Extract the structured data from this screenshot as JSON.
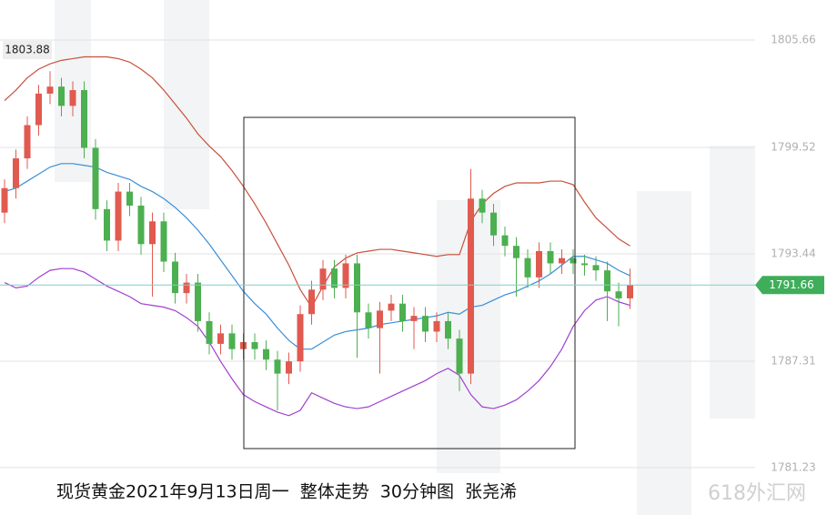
{
  "chart_data": {
    "type": "candlestick",
    "caption": "现货黄金2021年9月13日周一  整体走势  30分钟图  张尧浠",
    "watermark": "618外汇网",
    "high_label": 1803.88,
    "last_price": 1791.66,
    "ylim": [
      1778.52,
      1807.95
    ],
    "yticks": [
      1781.23,
      1787.31,
      1793.44,
      1799.52,
      1805.66
    ],
    "up_color": "#e05a50",
    "down_color": "#4caf50",
    "open": [
      1795.8,
      1797.2,
      1798.9,
      1800.8,
      1802.6,
      1803.0,
      1801.9,
      1802.8,
      1799.5,
      1796.0,
      1794.2,
      1797.0,
      1796.2,
      1794.0,
      1795.3,
      1793.0,
      1791.2,
      1791.8,
      1789.6,
      1788.3,
      1788.9,
      1788.0,
      1788.4,
      1788.0,
      1787.4,
      1786.6,
      1787.3,
      1790.0,
      1791.4,
      1792.6,
      1791.5,
      1792.9,
      1790.1,
      1789.2,
      1790.2,
      1790.6,
      1789.6,
      1789.9,
      1789.0,
      1789.6,
      1788.6,
      1786.6,
      1796.6,
      1795.8,
      1794.5,
      1793.9,
      1793.2,
      1792.1,
      1793.6,
      1792.9,
      1793.2,
      1792.9,
      1792.8,
      1792.5,
      1791.3,
      1790.9
    ],
    "high": [
      1797.7,
      1799.4,
      1801.3,
      1803.1,
      1803.88,
      1803.5,
      1803.3,
      1803.3,
      1800.0,
      1796.5,
      1797.5,
      1797.5,
      1796.7,
      1795.8,
      1795.8,
      1793.5,
      1792.3,
      1792.3,
      1790.1,
      1789.4,
      1789.4,
      1788.9,
      1788.9,
      1788.5,
      1787.9,
      1787.8,
      1790.5,
      1791.9,
      1793.1,
      1793.1,
      1793.4,
      1793.4,
      1790.6,
      1790.7,
      1791.1,
      1791.1,
      1790.4,
      1790.4,
      1790.1,
      1790.1,
      1789.1,
      1798.3,
      1797.1,
      1796.3,
      1795.0,
      1794.4,
      1793.7,
      1794.1,
      1794.1,
      1793.7,
      1793.7,
      1793.4,
      1793.3,
      1793.0,
      1791.8,
      1792.6
    ],
    "low": [
      1795.2,
      1796.6,
      1798.3,
      1800.2,
      1802.0,
      1801.3,
      1801.3,
      1798.9,
      1795.4,
      1793.6,
      1793.6,
      1795.6,
      1793.4,
      1791.0,
      1792.4,
      1790.6,
      1790.6,
      1789.0,
      1787.7,
      1787.7,
      1787.4,
      1787.4,
      1787.4,
      1786.8,
      1784.5,
      1786.0,
      1786.7,
      1789.4,
      1790.8,
      1790.9,
      1790.9,
      1787.5,
      1788.6,
      1786.6,
      1789.6,
      1789.0,
      1788.0,
      1788.4,
      1788.4,
      1788.0,
      1785.6,
      1786.0,
      1795.2,
      1793.9,
      1793.3,
      1791.0,
      1791.5,
      1791.5,
      1792.3,
      1792.3,
      1792.3,
      1792.2,
      1791.9,
      1789.6,
      1789.3,
      1790.3
    ],
    "close": [
      1797.2,
      1798.9,
      1800.8,
      1802.6,
      1803.0,
      1801.9,
      1802.8,
      1799.5,
      1796.0,
      1794.2,
      1797.0,
      1796.2,
      1794.0,
      1795.3,
      1793.0,
      1791.2,
      1791.8,
      1789.6,
      1788.3,
      1788.9,
      1788.0,
      1788.4,
      1788.0,
      1787.4,
      1786.6,
      1787.3,
      1790.0,
      1791.4,
      1792.6,
      1791.5,
      1792.9,
      1790.1,
      1789.2,
      1790.2,
      1790.6,
      1789.6,
      1789.9,
      1789.0,
      1789.6,
      1788.6,
      1786.6,
      1796.6,
      1795.8,
      1794.5,
      1793.9,
      1793.2,
      1792.1,
      1793.6,
      1792.9,
      1793.2,
      1792.9,
      1792.8,
      1792.5,
      1791.3,
      1790.9,
      1791.66
    ],
    "series": [
      {
        "color": "#c8503c",
        "values": [
          1802.2,
          1802.8,
          1803.5,
          1804.0,
          1804.3,
          1804.5,
          1804.6,
          1804.7,
          1804.7,
          1804.7,
          1804.6,
          1804.4,
          1804.0,
          1803.5,
          1802.8,
          1802.0,
          1801.2,
          1800.3,
          1799.6,
          1799.0,
          1798.2,
          1797.3,
          1796.3,
          1795.2,
          1794.0,
          1792.8,
          1791.4,
          1790.4,
          1791.6,
          1792.7,
          1793.2,
          1793.5,
          1793.6,
          1793.7,
          1793.7,
          1793.6,
          1793.5,
          1793.4,
          1793.3,
          1793.4,
          1793.4,
          1795.3,
          1796.3,
          1796.9,
          1797.3,
          1797.5,
          1797.5,
          1797.5,
          1797.6,
          1797.6,
          1797.4,
          1796.4,
          1795.5,
          1794.9,
          1794.3,
          1793.9
        ]
      },
      {
        "color": "#3a8fd8",
        "values": [
          1797.0,
          1797.2,
          1797.6,
          1798.0,
          1798.4,
          1798.6,
          1798.6,
          1798.5,
          1798.4,
          1798.1,
          1797.9,
          1797.7,
          1797.3,
          1797.0,
          1796.6,
          1796.1,
          1795.5,
          1794.8,
          1794.0,
          1793.1,
          1792.2,
          1791.3,
          1790.6,
          1790.0,
          1789.2,
          1788.5,
          1788.0,
          1788.0,
          1788.4,
          1788.8,
          1789.0,
          1789.1,
          1789.2,
          1789.4,
          1789.5,
          1789.6,
          1789.7,
          1789.8,
          1789.9,
          1790.1,
          1790.0,
          1790.4,
          1790.5,
          1790.8,
          1791.1,
          1791.3,
          1791.6,
          1791.9,
          1792.3,
          1792.8,
          1793.3,
          1793.3,
          1793.1,
          1792.9,
          1792.5,
          1792.2
        ]
      },
      {
        "color": "#a040d0",
        "values": [
          1791.8,
          1791.5,
          1791.6,
          1792.1,
          1792.5,
          1792.6,
          1792.6,
          1792.4,
          1792.0,
          1791.6,
          1791.3,
          1791.0,
          1790.6,
          1790.5,
          1790.4,
          1790.2,
          1789.8,
          1789.3,
          1788.4,
          1787.3,
          1786.3,
          1785.4,
          1785.0,
          1784.7,
          1784.4,
          1784.2,
          1784.5,
          1785.5,
          1785.2,
          1784.9,
          1784.7,
          1784.6,
          1784.7,
          1785.0,
          1785.3,
          1785.6,
          1785.9,
          1786.2,
          1786.6,
          1786.9,
          1786.5,
          1785.4,
          1784.7,
          1784.6,
          1784.8,
          1785.1,
          1785.6,
          1786.2,
          1787.0,
          1788.0,
          1789.3,
          1790.2,
          1790.8,
          1791.0,
          1790.7,
          1790.5
        ]
      }
    ]
  }
}
